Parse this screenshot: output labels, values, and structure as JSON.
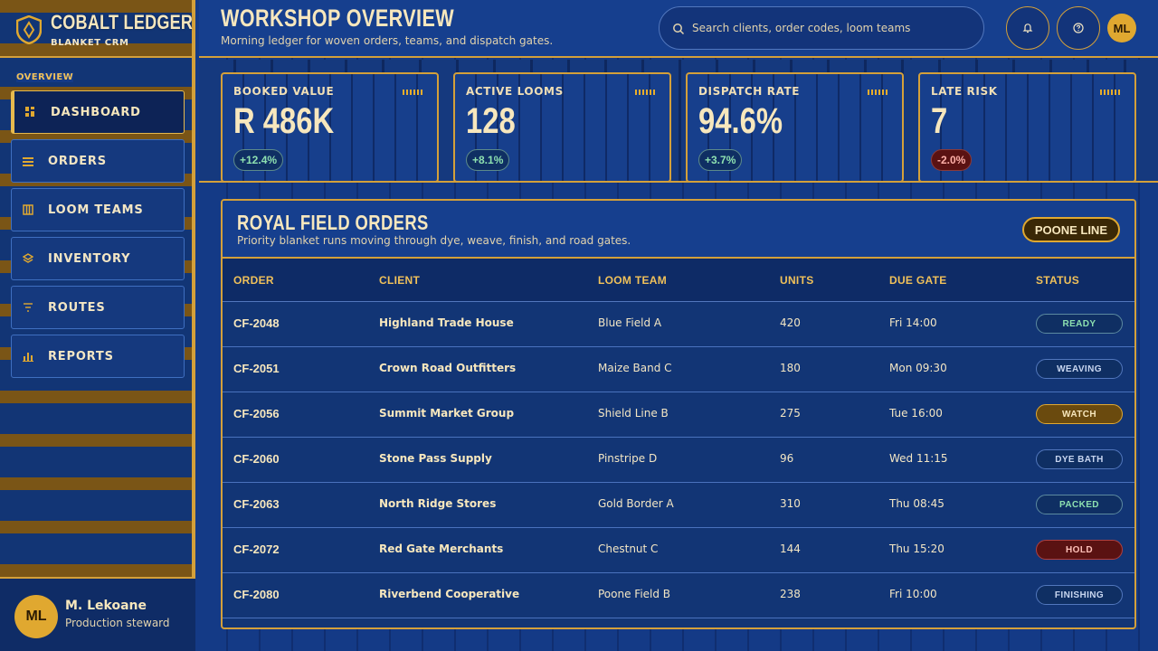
{
  "brand": {
    "title": "COBALT LEDGER",
    "subtitle": "BLANKET CRM"
  },
  "sidebar": {
    "section_label": "OVERVIEW",
    "items": [
      {
        "label": "DASHBOARD",
        "icon": "dashboard-icon",
        "active": true
      },
      {
        "label": "ORDERS",
        "icon": "orders-icon"
      },
      {
        "label": "LOOM TEAMS",
        "icon": "loom-teams-icon"
      },
      {
        "label": "INVENTORY",
        "icon": "layers-icon"
      },
      {
        "label": "ROUTES",
        "icon": "filter-icon"
      },
      {
        "label": "REPORTS",
        "icon": "bar-chart-icon"
      }
    ]
  },
  "user": {
    "initials": "ML",
    "name": "M. Lekoane",
    "role": "Production steward"
  },
  "header": {
    "title": "WORKSHOP OVERVIEW",
    "subtitle": "Morning ledger for woven orders, teams, and dispatch gates.",
    "search_placeholder": "Search clients, order codes, loom teams",
    "avatar_initials": "ML"
  },
  "kpis": [
    {
      "label": "BOOKED VALUE",
      "value": "R 486K",
      "delta": "+12.4%",
      "trend": "up"
    },
    {
      "label": "ACTIVE LOOMS",
      "value": "128",
      "delta": "+8.1%",
      "trend": "up"
    },
    {
      "label": "DISPATCH RATE",
      "value": "94.6%",
      "delta": "+3.7%",
      "trend": "up"
    },
    {
      "label": "LATE RISK",
      "value": "7",
      "delta": "-2.0%",
      "trend": "down"
    }
  ],
  "orders_panel": {
    "title": "ROYAL FIELD ORDERS",
    "subtitle": "Priority blanket runs moving through dye, weave, finish, and road gates.",
    "badge": "POONE LINE",
    "columns": [
      "ORDER",
      "CLIENT",
      "LOOM TEAM",
      "UNITS",
      "DUE GATE",
      "STATUS"
    ],
    "rows": [
      {
        "order": "CF-2048",
        "client": "Highland Trade House",
        "team": "Blue Field A",
        "units": "420",
        "due": "Fri 14:00",
        "status": "READY",
        "tone": "ready"
      },
      {
        "order": "CF-2051",
        "client": "Crown Road Outfitters",
        "team": "Maize Band C",
        "units": "180",
        "due": "Mon 09:30",
        "status": "WEAVING",
        "tone": "neutral"
      },
      {
        "order": "CF-2056",
        "client": "Summit Market Group",
        "team": "Shield Line B",
        "units": "275",
        "due": "Tue 16:00",
        "status": "WATCH",
        "tone": "watch"
      },
      {
        "order": "CF-2060",
        "client": "Stone Pass Supply",
        "team": "Pinstripe D",
        "units": "96",
        "due": "Wed 11:15",
        "status": "DYE BATH",
        "tone": "neutral"
      },
      {
        "order": "CF-2063",
        "client": "North Ridge Stores",
        "team": "Gold Border A",
        "units": "310",
        "due": "Thu 08:45",
        "status": "PACKED",
        "tone": "ready"
      },
      {
        "order": "CF-2072",
        "client": "Red Gate Merchants",
        "team": "Chestnut C",
        "units": "144",
        "due": "Thu 15:20",
        "status": "HOLD",
        "tone": "hold"
      },
      {
        "order": "CF-2080",
        "client": "Riverbend Cooperative",
        "team": "Poone Field B",
        "units": "238",
        "due": "Fri 10:00",
        "status": "FINISHING",
        "tone": "neutral"
      }
    ]
  },
  "colors": {
    "navy": "#143a86",
    "gold": "#d4a03a",
    "cream": "#f7e7bd",
    "accent": "#e0a830"
  }
}
